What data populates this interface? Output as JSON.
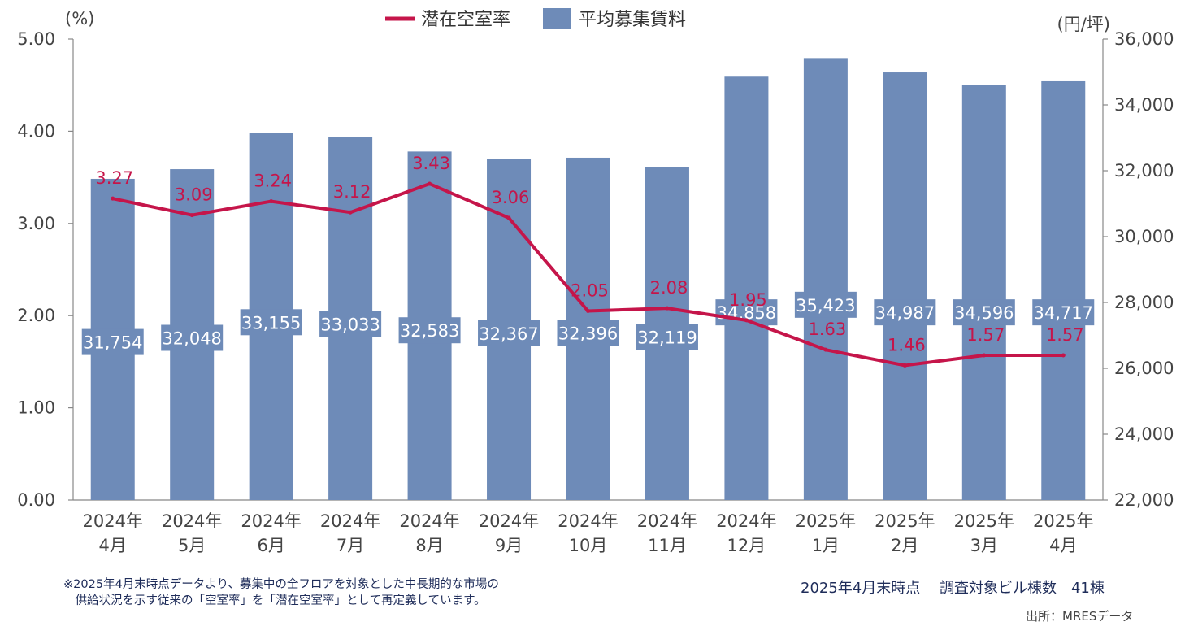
{
  "chart_data": {
    "type": "bar",
    "categories": [
      [
        "2024年",
        "4月"
      ],
      [
        "2024年",
        "5月"
      ],
      [
        "2024年",
        "6月"
      ],
      [
        "2024年",
        "7月"
      ],
      [
        "2024年",
        "8月"
      ],
      [
        "2024年",
        "9月"
      ],
      [
        "2024年",
        "10月"
      ],
      [
        "2024年",
        "11月"
      ],
      [
        "2024年",
        "12月"
      ],
      [
        "2025年",
        "1月"
      ],
      [
        "2025年",
        "2月"
      ],
      [
        "2025年",
        "3月"
      ],
      [
        "2025年",
        "4月"
      ]
    ],
    "series": [
      {
        "name": "平均募集賃料",
        "type": "bar",
        "axis": "right",
        "color": "#6e8bb8",
        "values": [
          31754,
          32048,
          33155,
          33033,
          32583,
          32367,
          32396,
          32119,
          34858,
          35423,
          34987,
          34596,
          34717
        ],
        "labels": [
          "31,754",
          "32,048",
          "33,155",
          "33,033",
          "32,583",
          "32,367",
          "32,396",
          "32,119",
          "34,858",
          "35,423",
          "34,987",
          "34,596",
          "34,717"
        ]
      },
      {
        "name": "潜在空室率",
        "type": "line",
        "axis": "left",
        "color": "#c5154a",
        "values": [
          3.27,
          3.09,
          3.24,
          3.12,
          3.43,
          3.06,
          2.05,
          2.08,
          1.95,
          1.63,
          1.46,
          1.57,
          1.57
        ],
        "labels": [
          "3.27",
          "3.09",
          "3.24",
          "3.12",
          "3.43",
          "3.06",
          "2.05",
          "2.08",
          "1.95",
          "1.63",
          "1.46",
          "1.57",
          "1.57"
        ]
      }
    ],
    "y_left": {
      "unit": "(%)",
      "range": [
        0,
        5
      ],
      "ticks": [
        0,
        1,
        2,
        3,
        4,
        5
      ],
      "tick_labels": [
        "0.00",
        "1.00",
        "2.00",
        "3.00",
        "4.00",
        "5.00"
      ]
    },
    "y_right": {
      "unit": "(円/坪)",
      "range": [
        22000,
        36000
      ],
      "ticks": [
        22000,
        24000,
        26000,
        28000,
        30000,
        32000,
        34000,
        36000
      ],
      "tick_labels": [
        "22,000",
        "24,000",
        "26,000",
        "28,000",
        "30,000",
        "32,000",
        "34,000",
        "36,000"
      ]
    },
    "legend_position": "top-center",
    "grid": false
  },
  "footnote": {
    "line1": "※2025年4月末時点データより、募集中の全フロアを対象とした中長期的な市場の",
    "line2": "　供給状況を示す従来の「空室率」を「潜在空室率」として再定義しています。"
  },
  "as_of": "2025年4月末時点　 調査対象ビル棟数　41棟",
  "source": "出所：MRESデータ"
}
